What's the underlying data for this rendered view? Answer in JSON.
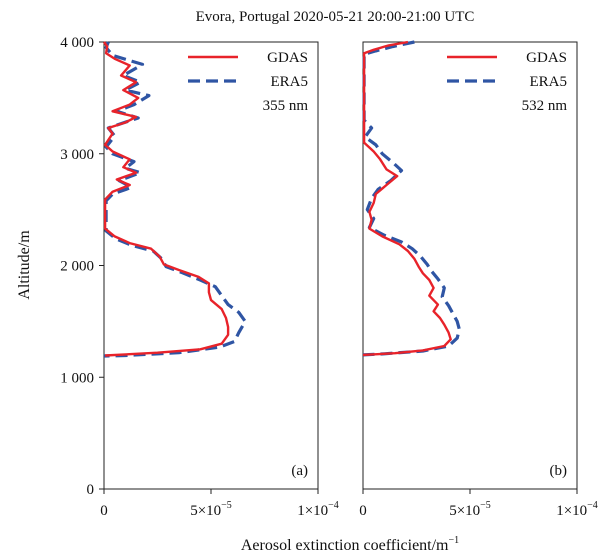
{
  "title": "Evora, Portugal 2020-05-21 20:00-21:00 UTC",
  "ylabel": "Altitude/m",
  "xlabel": "Aerosol extinction coefficient/m",
  "xlabel_sup": "−1",
  "colors": {
    "gdas": "#e8232a",
    "era5": "#2f55a4"
  },
  "chart_data": [
    {
      "type": "line",
      "panel": "(a)",
      "wavelength": "355 nm",
      "xlim": [
        0,
        0.0001
      ],
      "ylim": [
        0,
        4000
      ],
      "xticks": [
        "0",
        "5×10",
        "1×10"
      ],
      "xtick_sups": [
        "",
        "−5",
        "−4"
      ],
      "xtick_values": [
        0,
        5e-05,
        0.0001
      ],
      "yticks": [
        "0",
        "1 000",
        "2 000",
        "3 000",
        "4 000"
      ],
      "ytick_values": [
        0,
        1000,
        2000,
        3000,
        4000
      ],
      "legend_position": "top-right",
      "series": [
        {
          "name": "GDAS",
          "style": "solid",
          "points": [
            [
              0.0,
              4000
            ],
            [
              1.5e-06,
              3960
            ],
            [
              1e-06,
              3900
            ],
            [
              5e-06,
              3850
            ],
            [
              1.2e-05,
              3790
            ],
            [
              8e-06,
              3700
            ],
            [
              1.5e-05,
              3640
            ],
            [
              9e-06,
              3570
            ],
            [
              1.6e-05,
              3500
            ],
            [
              1.2e-05,
              3440
            ],
            [
              4e-06,
              3380
            ],
            [
              1.5e-05,
              3330
            ],
            [
              1e-05,
              3280
            ],
            [
              2e-06,
              3230
            ],
            [
              4e-06,
              3180
            ],
            [
              5e-07,
              3080
            ],
            [
              4e-06,
              3020
            ],
            [
              1.2e-05,
              2950
            ],
            [
              9e-06,
              2880
            ],
            [
              1.5e-05,
              2830
            ],
            [
              6e-06,
              2770
            ],
            [
              1.2e-05,
              2720
            ],
            [
              4e-06,
              2660
            ],
            [
              5e-07,
              2590
            ],
            [
              5e-07,
              2330
            ],
            [
              5e-06,
              2260
            ],
            [
              1.2e-05,
              2200
            ],
            [
              2.2e-05,
              2150
            ],
            [
              2.6e-05,
              2080
            ],
            [
              2.8e-05,
              2010
            ],
            [
              3.5e-05,
              1960
            ],
            [
              4.4e-05,
              1900
            ],
            [
              4.9e-05,
              1840
            ],
            [
              4.9e-05,
              1760
            ],
            [
              5e-05,
              1690
            ],
            [
              5.5e-05,
              1610
            ],
            [
              5.7e-05,
              1530
            ],
            [
              5.8e-05,
              1450
            ],
            [
              5.8e-05,
              1380
            ],
            [
              5.5e-05,
              1300
            ],
            [
              4.5e-05,
              1250
            ],
            [
              2.5e-05,
              1220
            ],
            [
              5e-07,
              1195
            ]
          ]
        },
        {
          "name": "ERA5",
          "style": "dashed",
          "points": [
            [
              2e-06,
              4000
            ],
            [
              1e-06,
              3950
            ],
            [
              4e-06,
              3880
            ],
            [
              1.8e-05,
              3800
            ],
            [
              9e-06,
              3700
            ],
            [
              1.7e-05,
              3640
            ],
            [
              1e-05,
              3570
            ],
            [
              2.1e-05,
              3520
            ],
            [
              1.4e-05,
              3440
            ],
            [
              6e-06,
              3380
            ],
            [
              1.6e-05,
              3320
            ],
            [
              8e-06,
              3270
            ],
            [
              2e-06,
              3230
            ],
            [
              5e-06,
              3160
            ],
            [
              1e-06,
              3060
            ],
            [
              4e-06,
              3000
            ],
            [
              1.4e-05,
              2930
            ],
            [
              1e-05,
              2870
            ],
            [
              1.7e-05,
              2830
            ],
            [
              7e-06,
              2760
            ],
            [
              1.3e-05,
              2700
            ],
            [
              4e-06,
              2640
            ],
            [
              1e-06,
              2580
            ],
            [
              1e-06,
              2310
            ],
            [
              5.5e-06,
              2240
            ],
            [
              1.3e-05,
              2180
            ],
            [
              2.3e-05,
              2130
            ],
            [
              2.7e-05,
              2060
            ],
            [
              2.9e-05,
              1990
            ],
            [
              3.6e-05,
              1940
            ],
            [
              4.5e-05,
              1870
            ],
            [
              5.2e-05,
              1810
            ],
            [
              5.5e-05,
              1730
            ],
            [
              5.8e-05,
              1650
            ],
            [
              6.3e-05,
              1580
            ],
            [
              6.6e-05,
              1500
            ],
            [
              6.3e-05,
              1400
            ],
            [
              6.1e-05,
              1320
            ],
            [
              5.4e-05,
              1270
            ],
            [
              3.5e-05,
              1220
            ],
            [
              1e-05,
              1195
            ],
            [
              0.0,
              1190
            ]
          ]
        }
      ]
    },
    {
      "type": "line",
      "panel": "(b)",
      "wavelength": "532 nm",
      "xlim": [
        0,
        0.0001
      ],
      "ylim": [
        0,
        4000
      ],
      "xticks": [
        "0",
        "5×10",
        "1×10"
      ],
      "xtick_sups": [
        "",
        "−5",
        "−4"
      ],
      "xtick_values": [
        0,
        5e-05,
        0.0001
      ],
      "yticks": [],
      "ytick_values": [],
      "legend_position": "top-right",
      "series": [
        {
          "name": "GDAS",
          "style": "solid",
          "points": [
            [
              2.1e-05,
              4000
            ],
            [
              1.2e-05,
              3970
            ],
            [
              5e-06,
              3930
            ],
            [
              5e-07,
              3900
            ],
            [
              5e-07,
              3100
            ],
            [
              5e-06,
              3020
            ],
            [
              8e-06,
              2950
            ],
            [
              1.1e-05,
              2860
            ],
            [
              1.6e-05,
              2800
            ],
            [
              1.1e-05,
              2720
            ],
            [
              6e-06,
              2640
            ],
            [
              5e-06,
              2560
            ],
            [
              3e-06,
              2480
            ],
            [
              4e-06,
              2410
            ],
            [
              3e-06,
              2330
            ],
            [
              9e-06,
              2260
            ],
            [
              1.7e-05,
              2190
            ],
            [
              2.1e-05,
              2130
            ],
            [
              2.4e-05,
              2060
            ],
            [
              2.6e-05,
              1990
            ],
            [
              2.8e-05,
              1930
            ],
            [
              3.1e-05,
              1870
            ],
            [
              3.3e-05,
              1800
            ],
            [
              3.1e-05,
              1730
            ],
            [
              3.5e-05,
              1650
            ],
            [
              3.3e-05,
              1590
            ],
            [
              3.6e-05,
              1530
            ],
            [
              3.8e-05,
              1470
            ],
            [
              4e-05,
              1400
            ],
            [
              4.1e-05,
              1340
            ],
            [
              3.8e-05,
              1280
            ],
            [
              2.8e-05,
              1240
            ],
            [
              1.5e-05,
              1215
            ],
            [
              0.0,
              1200
            ]
          ]
        },
        {
          "name": "ERA5",
          "style": "dashed",
          "points": [
            [
              2.4e-05,
              4000
            ],
            [
              1.4e-05,
              3960
            ],
            [
              6e-06,
              3920
            ],
            [
              5e-07,
              3890
            ],
            [
              5e-07,
              3300
            ],
            [
              4e-06,
              3230
            ],
            [
              1e-06,
              3150
            ],
            [
              6e-06,
              3080
            ],
            [
              9e-06,
              3000
            ],
            [
              1.4e-05,
              2920
            ],
            [
              1.8e-05,
              2850
            ],
            [
              1.3e-05,
              2760
            ],
            [
              7e-06,
              2680
            ],
            [
              4e-06,
              2600
            ],
            [
              2e-06,
              2500
            ],
            [
              5e-06,
              2420
            ],
            [
              3e-06,
              2340
            ],
            [
              1e-05,
              2270
            ],
            [
              1.8e-05,
              2210
            ],
            [
              2.3e-05,
              2150
            ],
            [
              2.7e-05,
              2080
            ],
            [
              3e-05,
              2010
            ],
            [
              3.2e-05,
              1950
            ],
            [
              3.5e-05,
              1880
            ],
            [
              3.8e-05,
              1800
            ],
            [
              3.7e-05,
              1720
            ],
            [
              4e-05,
              1640
            ],
            [
              4.2e-05,
              1570
            ],
            [
              4.4e-05,
              1500
            ],
            [
              4.5e-05,
              1430
            ],
            [
              4.4e-05,
              1350
            ],
            [
              4e-05,
              1280
            ],
            [
              2.8e-05,
              1235
            ],
            [
              1e-05,
              1210
            ],
            [
              0.0,
              1200
            ]
          ]
        }
      ]
    }
  ]
}
